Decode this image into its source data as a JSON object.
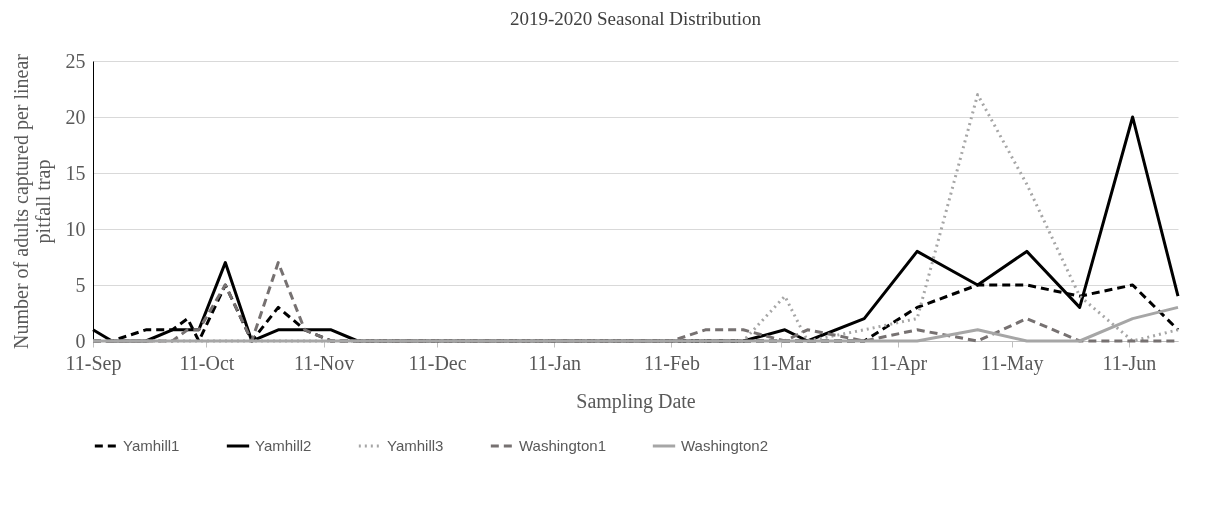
{
  "chart_data": {
    "type": "line",
    "title": "2019-2020 Seasonal Distribution",
    "xlabel": "Sampling Date",
    "ylabel": "Number of  adults captured per linear pitfall trap",
    "x": [
      "2019-09-11",
      "2019-09-16",
      "2019-09-25",
      "2019-10-02",
      "2019-10-06",
      "2019-10-09",
      "2019-10-16",
      "2019-10-23",
      "2019-10-30",
      "2019-11-06",
      "2019-11-13",
      "2019-11-20",
      "2020-01-29",
      "2020-02-11",
      "2020-02-20",
      "2020-03-01",
      "2020-03-12",
      "2020-03-18",
      "2020-04-02",
      "2020-04-16",
      "2020-05-02",
      "2020-05-15",
      "2020-05-29",
      "2020-06-12",
      "2020-06-24"
    ],
    "series": [
      {
        "name": "Yamhill1",
        "color": "#000000",
        "line_style": "dashed",
        "values": [
          0,
          0,
          1,
          1,
          2,
          0,
          5,
          0,
          3,
          1,
          0,
          0,
          0,
          0,
          0,
          0,
          0,
          0,
          0,
          3,
          5,
          5,
          4,
          5,
          1
        ]
      },
      {
        "name": "Yamhill2",
        "color": "#000000",
        "line_style": "solid",
        "values": [
          1,
          0,
          0,
          1,
          1,
          1,
          7,
          0,
          1,
          1,
          1,
          0,
          0,
          0,
          0,
          0,
          1,
          0,
          2,
          8,
          5,
          8,
          3,
          20,
          4
        ]
      },
      {
        "name": "Yamhill3",
        "color": "#a6a6a6",
        "line_style": "dotted",
        "values": [
          0,
          0,
          0,
          0,
          0,
          0,
          0,
          0,
          0,
          0,
          0,
          0,
          0,
          0,
          0,
          0,
          4,
          0,
          1,
          2,
          22,
          14,
          4,
          0,
          1
        ]
      },
      {
        "name": "Washington1",
        "color": "#767171",
        "line_style": "dashed",
        "values": [
          0,
          0,
          0,
          0,
          1,
          1,
          5,
          0,
          7,
          1,
          0,
          0,
          0,
          0,
          1,
          1,
          0,
          1,
          0,
          1,
          0,
          2,
          0,
          0,
          0
        ]
      },
      {
        "name": "Washington2",
        "color": "#a6a6a6",
        "line_style": "solid",
        "values": [
          0,
          0,
          0,
          0,
          0,
          0,
          0,
          0,
          0,
          0,
          0,
          0,
          0,
          0,
          0,
          0,
          0,
          0,
          0,
          0,
          1,
          0,
          0,
          2,
          3
        ]
      }
    ],
    "xlim": [
      "2019-09-11",
      "2020-06-24"
    ],
    "xticks": [
      {
        "value": "2019-09-11",
        "label": "11-Sep"
      },
      {
        "value": "2019-10-11",
        "label": "11-Oct"
      },
      {
        "value": "2019-11-11",
        "label": "11-Nov"
      },
      {
        "value": "2019-12-11",
        "label": "11-Dec"
      },
      {
        "value": "2020-01-11",
        "label": "11-Jan"
      },
      {
        "value": "2020-02-11",
        "label": "11-Feb"
      },
      {
        "value": "2020-03-11",
        "label": "11-Mar"
      },
      {
        "value": "2020-04-11",
        "label": "11-Apr"
      },
      {
        "value": "2020-05-11",
        "label": "11-May"
      },
      {
        "value": "2020-06-11",
        "label": "11-Jun"
      }
    ],
    "ylim": [
      0,
      25
    ],
    "yticks": [
      0,
      5,
      10,
      15,
      20,
      25
    ],
    "grid": "y",
    "legend": "bottom",
    "marker": "none"
  }
}
